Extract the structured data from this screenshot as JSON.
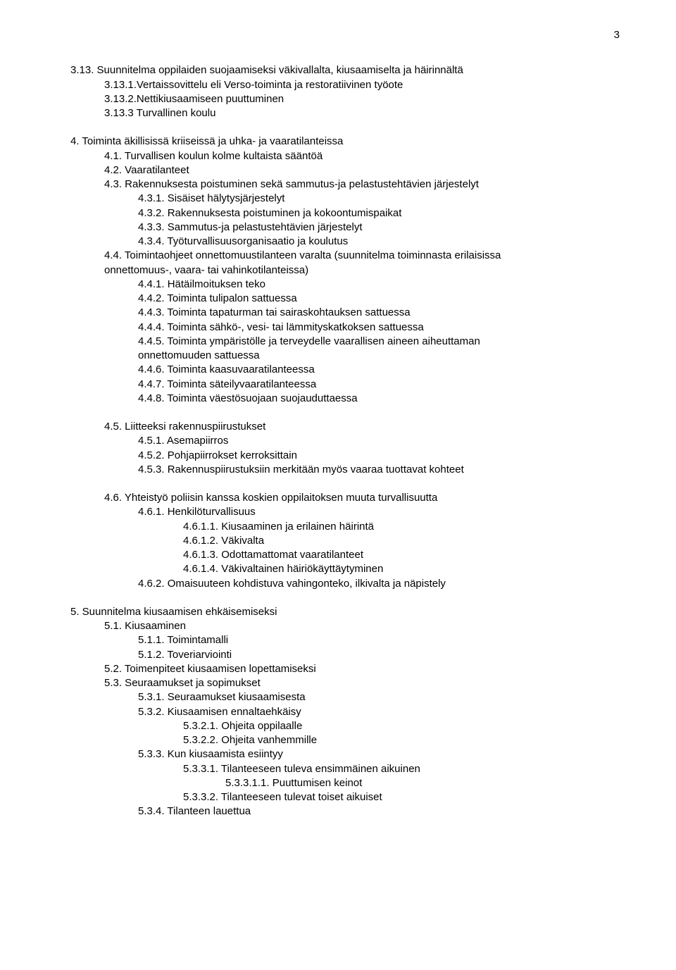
{
  "page_number": "3",
  "lines": [
    {
      "indent": 0,
      "text": "3.13. Suunnitelma oppilaiden suojaamiseksi väkivallalta, kiusaamiselta ja häirinnältä"
    },
    {
      "indent": 1,
      "text": "3.13.1.Vertaissovittelu eli Verso-toiminta ja restoratiivinen työote"
    },
    {
      "indent": 1,
      "text": "3.13.2.Nettikiusaamiseen puuttuminen"
    },
    {
      "indent": 1,
      "text": "3.13.3 Turvallinen koulu"
    },
    {
      "gap": true
    },
    {
      "indent": 0,
      "text": "4. Toiminta äkillisissä kriiseissä ja uhka- ja vaaratilanteissa"
    },
    {
      "indent": 1,
      "text": "4.1. Turvallisen koulun kolme kultaista sääntöä"
    },
    {
      "indent": 1,
      "text": "4.2. Vaaratilanteet"
    },
    {
      "indent": 1,
      "text": "4.3. Rakennuksesta poistuminen sekä sammutus-ja pelastustehtävien järjestelyt"
    },
    {
      "indent": 2,
      "text": "4.3.1. Sisäiset hälytysjärjestelyt"
    },
    {
      "indent": 2,
      "text": "4.3.2. Rakennuksesta poistuminen ja kokoontumispaikat"
    },
    {
      "indent": 2,
      "text": "4.3.3. Sammutus-ja pelastustehtävien järjestelyt"
    },
    {
      "indent": 2,
      "text": "4.3.4. Työturvallisuusorganisaatio ja koulutus"
    },
    {
      "indent": 1,
      "text": "4.4. Toimintaohjeet onnettomuustilanteen varalta (suunnitelma toiminnasta erilaisissa"
    },
    {
      "indent": 1,
      "text": "onnettomuus-, vaara- tai vahinkotilanteissa)"
    },
    {
      "indent": 2,
      "text": "4.4.1. Hätäilmoituksen teko"
    },
    {
      "indent": 2,
      "text": "4.4.2. Toiminta tulipalon sattuessa"
    },
    {
      "indent": 2,
      "text": "4.4.3. Toiminta tapaturman tai sairaskohtauksen sattuessa"
    },
    {
      "indent": 2,
      "text": "4.4.4. Toiminta sähkö-, vesi- tai lämmityskatkoksen sattuessa"
    },
    {
      "indent": 2,
      "text": "4.4.5. Toiminta ympäristölle ja terveydelle vaarallisen aineen aiheuttaman"
    },
    {
      "indent": 2,
      "text": "onnettomuuden sattuessa"
    },
    {
      "indent": 2,
      "text": "4.4.6. Toiminta kaasuvaaratilanteessa"
    },
    {
      "indent": 2,
      "text": "4.4.7. Toiminta säteilyvaaratilanteessa"
    },
    {
      "indent": 2,
      "text": "4.4.8. Toiminta väestösuojaan suojauduttaessa"
    },
    {
      "gap": true
    },
    {
      "indent": 1,
      "text": "4.5. Liitteeksi rakennuspiirustukset"
    },
    {
      "indent": 2,
      "text": "4.5.1. Asemapiirros"
    },
    {
      "indent": 2,
      "text": "4.5.2. Pohjapiirrokset kerroksittain"
    },
    {
      "indent": 2,
      "text": "4.5.3. Rakennuspiirustuksiin merkitään myös vaaraa tuottavat kohteet"
    },
    {
      "gap": true
    },
    {
      "indent": 1,
      "text": "4.6. Yhteistyö poliisin kanssa koskien oppilaitoksen muuta turvallisuutta"
    },
    {
      "indent": 2,
      "text": "4.6.1. Henkilöturvallisuus"
    },
    {
      "indent": 3,
      "text": "4.6.1.1. Kiusaaminen ja erilainen häirintä"
    },
    {
      "indent": 3,
      "text": "4.6.1.2. Väkivalta"
    },
    {
      "indent": 3,
      "text": "4.6.1.3. Odottamattomat vaaratilanteet"
    },
    {
      "indent": 3,
      "text": "4.6.1.4. Väkivaltainen häiriökäyttäytyminen"
    },
    {
      "indent": 2,
      "text": "4.6.2. Omaisuuteen kohdistuva vahingonteko, ilkivalta ja näpistely"
    },
    {
      "gap": true
    },
    {
      "indent": 0,
      "text": "5. Suunnitelma kiusaamisen ehkäisemiseksi"
    },
    {
      "indent": 1,
      "text": "5.1. Kiusaaminen"
    },
    {
      "indent": 2,
      "text": "5.1.1. Toimintamalli"
    },
    {
      "indent": 2,
      "text": "5.1.2. Toveriarviointi"
    },
    {
      "indent": 1,
      "text": "5.2. Toimenpiteet kiusaamisen lopettamiseksi"
    },
    {
      "indent": 1,
      "text": "5.3. Seuraamukset ja sopimukset"
    },
    {
      "indent": 2,
      "text": "5.3.1. Seuraamukset kiusaamisesta"
    },
    {
      "indent": 2,
      "text": "5.3.2. Kiusaamisen ennaltaehkäisy"
    },
    {
      "indent": 3,
      "text": "5.3.2.1. Ohjeita oppilaalle"
    },
    {
      "indent": 3,
      "text": "5.3.2.2. Ohjeita vanhemmille"
    },
    {
      "indent": 2,
      "text": "5.3.3. Kun kiusaamista esiintyy"
    },
    {
      "indent": 3,
      "text": "5.3.3.1. Tilanteeseen tuleva ensimmäinen aikuinen"
    },
    {
      "indent": 4,
      "text": "5.3.3.1.1. Puuttumisen keinot"
    },
    {
      "indent": 3,
      "text": "5.3.3.2. Tilanteeseen tulevat toiset aikuiset"
    },
    {
      "indent": 2,
      "text": "5.3.4. Tilanteen lauettua"
    }
  ]
}
